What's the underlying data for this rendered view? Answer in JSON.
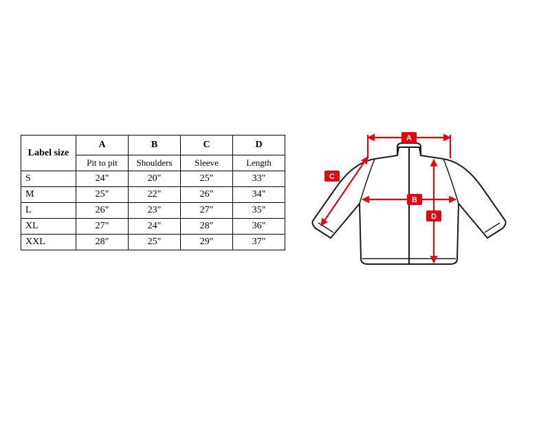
{
  "table": {
    "label_header": "Label size",
    "letter_headers": [
      "A",
      "B",
      "C",
      "D"
    ],
    "sub_headers": [
      "Pit to pit",
      "Shoulders",
      "Sleeve",
      "Length"
    ],
    "rows": [
      {
        "size": "S",
        "vals": [
          "24\"",
          "20\"",
          "25\"",
          "33\""
        ]
      },
      {
        "size": "M",
        "vals": [
          "25\"",
          "22\"",
          "26\"",
          "34\""
        ]
      },
      {
        "size": "L",
        "vals": [
          "26\"",
          "23\"",
          "27\"",
          "35\""
        ]
      },
      {
        "size": "XL",
        "vals": [
          "27\"",
          "24\"",
          "28\"",
          "36\""
        ]
      },
      {
        "size": "XXL",
        "vals": [
          "28\"",
          "25\"",
          "29\"",
          "37\""
        ]
      }
    ]
  },
  "diagram": {
    "labels": {
      "a": "A",
      "b": "B",
      "c": "C",
      "d": "D"
    },
    "colors": {
      "arrow": "#e30613",
      "arrow_stroke_width": 2.2,
      "label_bg": "#e30613",
      "label_text": "#ffffff",
      "garment_stroke": "#1a1a1a",
      "garment_fill": "#ffffff",
      "garment_stroke_width": 2
    }
  }
}
